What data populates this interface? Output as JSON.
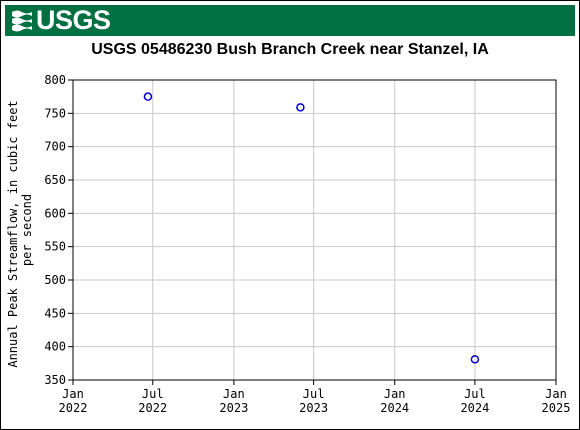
{
  "header": {
    "logo_text": "USGS",
    "title": "USGS 05486230 Bush Branch Creek near Stanzel, IA"
  },
  "colors": {
    "banner": "#006f41",
    "marker": "#0000cc",
    "grid": "#c8c8c8"
  },
  "chart_data": {
    "type": "scatter",
    "title": "USGS 05486230 Bush Branch Creek near Stanzel, IA",
    "ylabel": [
      "Annual Peak Streamflow, in cubic feet",
      "per second"
    ],
    "xlabel": "",
    "ylim": [
      350,
      800
    ],
    "yticks": [
      350,
      400,
      450,
      500,
      550,
      600,
      650,
      700,
      750,
      800
    ],
    "xlim": [
      "2022-01-01",
      "2025-01-01"
    ],
    "xticks": [
      {
        "date": "2022-01-01",
        "line1": "Jan",
        "line2": "2022"
      },
      {
        "date": "2022-07-01",
        "line1": "Jul",
        "line2": "2022"
      },
      {
        "date": "2023-01-01",
        "line1": "Jan",
        "line2": "2023"
      },
      {
        "date": "2023-07-01",
        "line1": "Jul",
        "line2": "2023"
      },
      {
        "date": "2024-01-01",
        "line1": "Jan",
        "line2": "2024"
      },
      {
        "date": "2024-07-01",
        "line1": "Jul",
        "line2": "2024"
      },
      {
        "date": "2025-01-01",
        "line1": "Jan",
        "line2": "2025"
      }
    ],
    "grid": true,
    "points": [
      {
        "x": "2022-06-20",
        "y": 775
      },
      {
        "x": "2023-06-01",
        "y": 759
      },
      {
        "x": "2024-07-01",
        "y": 381
      }
    ]
  }
}
